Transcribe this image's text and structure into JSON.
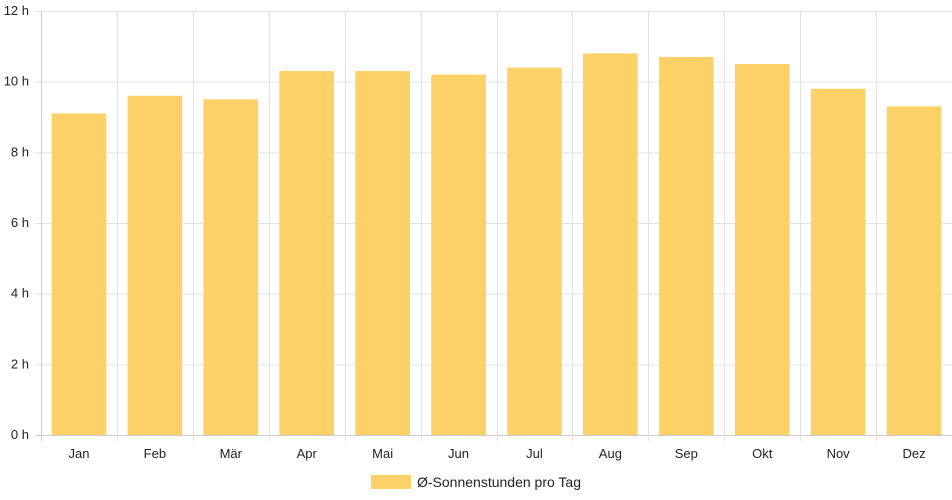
{
  "chart_data": {
    "type": "bar",
    "categories": [
      "Jan",
      "Feb",
      "Mär",
      "Apr",
      "Mai",
      "Jun",
      "Jul",
      "Aug",
      "Sep",
      "Okt",
      "Nov",
      "Dez"
    ],
    "series": [
      {
        "name": "Ø-Sonnenstunden pro Tag",
        "values": [
          9.1,
          9.6,
          9.5,
          10.3,
          10.3,
          10.2,
          10.4,
          10.8,
          10.7,
          10.5,
          9.8,
          9.3
        ],
        "color": "#fdd068"
      }
    ],
    "ylim": [
      0,
      12
    ],
    "yticks": [
      0,
      2,
      4,
      6,
      8,
      10,
      12
    ],
    "ytick_suffix": " h",
    "grid": true,
    "legend_position": "bottom",
    "colors": {
      "grid": "#e2e2e2",
      "axis": "#cccccc",
      "text": "#222222"
    }
  }
}
